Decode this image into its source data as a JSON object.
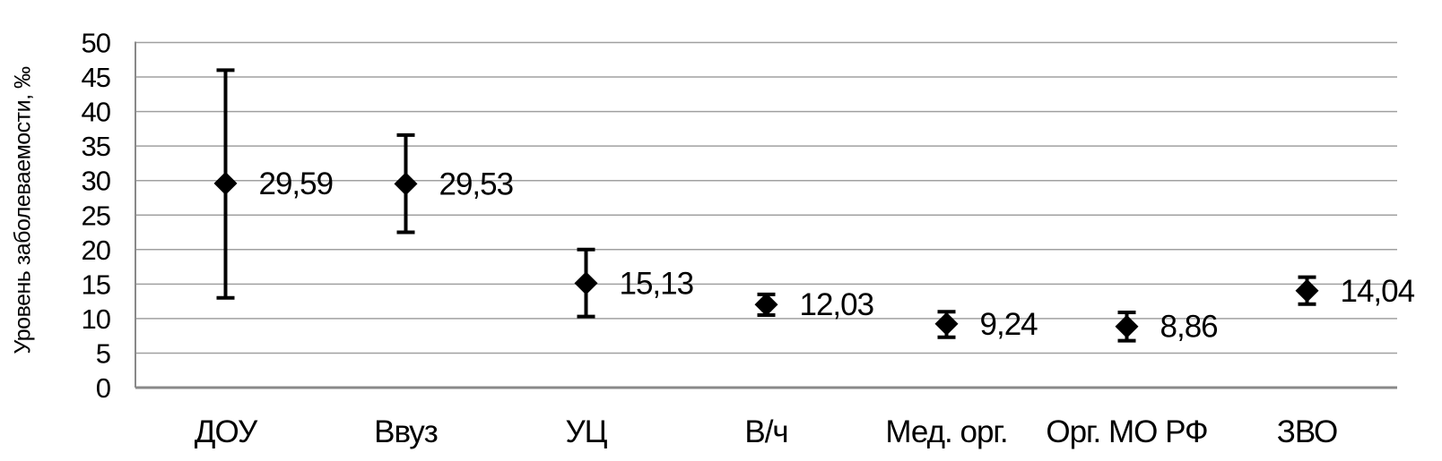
{
  "figure": {
    "background": "#ffffff"
  },
  "chart_data": {
    "type": "scatter",
    "title": "",
    "xlabel": "",
    "ylabel": "Уровень заболеваемости, ‰",
    "ylim": [
      0,
      50
    ],
    "ytick_step": 5,
    "yticks": [
      0,
      5,
      10,
      15,
      20,
      25,
      30,
      35,
      40,
      45,
      50
    ],
    "grid": "horizontal",
    "legend": "none",
    "marker": "diamond",
    "decimal_separator": ",",
    "categories": [
      "ДОУ",
      "Ввуз",
      "УЦ",
      "В/ч",
      "Мед. орг.",
      "Орг. МО РФ",
      "ЗВО"
    ],
    "series": [
      {
        "name": "Уровень заболеваемости, ‰",
        "values": [
          29.59,
          29.53,
          15.13,
          12.03,
          9.24,
          8.86,
          14.04
        ],
        "value_labels": [
          "29,59",
          "29,53",
          "15,13",
          "12,03",
          "9,24",
          "8,86",
          "14,04"
        ],
        "error_upper": [
          46.0,
          36.6,
          20.0,
          13.5,
          11.0,
          10.9,
          16.0
        ],
        "error_lower": [
          13.0,
          22.5,
          10.3,
          10.5,
          7.3,
          6.8,
          12.1
        ]
      }
    ],
    "colors": {
      "marker": "#000000",
      "error_bar": "#000000",
      "text": "#000000",
      "gridline": "#a0a0a0",
      "axis": "#898989",
      "background": "#ffffff"
    }
  }
}
